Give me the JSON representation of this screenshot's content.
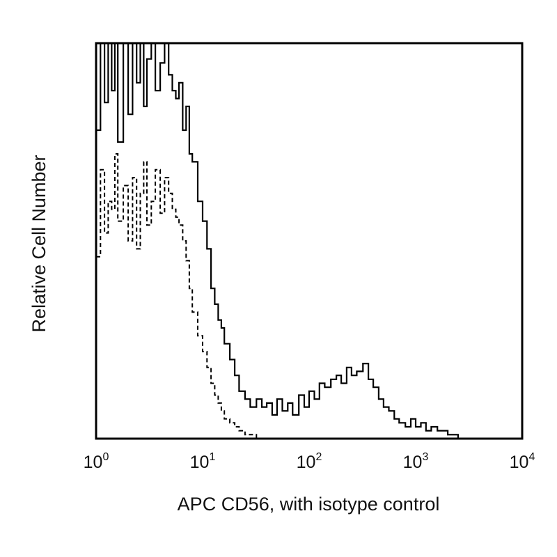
{
  "chart_data": {
    "type": "histogram",
    "title": "",
    "xlabel": "APC CD56, with isotype control",
    "ylabel": "Relative Cell Number",
    "x_scale": "log",
    "xlim": [
      1,
      10000
    ],
    "ylim": [
      0,
      100
    ],
    "grid": false,
    "legend": "none",
    "x_ticks": [
      {
        "value": 1,
        "base": "10",
        "exp": "0"
      },
      {
        "value": 10,
        "base": "10",
        "exp": "1"
      },
      {
        "value": 100,
        "base": "10",
        "exp": "2"
      },
      {
        "value": 1000,
        "base": "10",
        "exp": "3"
      },
      {
        "value": 10000,
        "base": "10",
        "exp": "4"
      }
    ],
    "series": [
      {
        "style": "solid",
        "color": "#000000",
        "x": [
          1.0,
          1.1,
          1.2,
          1.3,
          1.4,
          1.5,
          1.6,
          1.8,
          2.0,
          2.2,
          2.4,
          2.6,
          2.8,
          3.0,
          3.3,
          3.6,
          4.0,
          4.4,
          4.8,
          5.2,
          5.6,
          6.0,
          6.5,
          7.0,
          7.5,
          8.0,
          9.0,
          10.0,
          11.0,
          12.0,
          13.0,
          14.0,
          15.0,
          16.0,
          18.0,
          20.0,
          22.0,
          25.0,
          28.0,
          32.0,
          36.0,
          40.0,
          45.0,
          50.0,
          56.0,
          63.0,
          70.0,
          80.0,
          90.0,
          100.0,
          112.0,
          125.0,
          140.0,
          160.0,
          180.0,
          200.0,
          225.0,
          250.0,
          280.0,
          320.0,
          360.0,
          400.0,
          450.0,
          500.0,
          560.0,
          630.0,
          700.0,
          800.0,
          900.0,
          1000.0,
          1120.0,
          1250.0,
          1400.0,
          1600.0,
          1800.0,
          2000.0,
          2250.0,
          2500.0
        ],
        "y": [
          78,
          100,
          85,
          100,
          88,
          100,
          75,
          100,
          82,
          100,
          90,
          100,
          84,
          96,
          100,
          88,
          95,
          100,
          92,
          88,
          86,
          90,
          78,
          84,
          72,
          70,
          60,
          55,
          48,
          38,
          34,
          30,
          28,
          24,
          20,
          16,
          12,
          10,
          8,
          10,
          8,
          9,
          6,
          10,
          7,
          9,
          6,
          11,
          8,
          12,
          10,
          14,
          13,
          15,
          16,
          14,
          18,
          16,
          17,
          19,
          15,
          13,
          10,
          8,
          7,
          5,
          4,
          3,
          5,
          3,
          4,
          2,
          3,
          2,
          2,
          1,
          1,
          0
        ]
      },
      {
        "style": "dashed",
        "color": "#000000",
        "x": [
          1.0,
          1.1,
          1.2,
          1.3,
          1.4,
          1.5,
          1.6,
          1.8,
          2.0,
          2.2,
          2.4,
          2.6,
          2.8,
          3.0,
          3.3,
          3.6,
          4.0,
          4.4,
          4.8,
          5.2,
          5.6,
          6.0,
          6.5,
          7.0,
          7.5,
          8.0,
          9.0,
          10.0,
          11.0,
          12.0,
          13.0,
          14.0,
          15.0,
          16.0,
          18.0,
          20.0,
          22.0,
          25.0,
          28.0,
          32.0,
          36.0
        ],
        "y": [
          46,
          68,
          52,
          60,
          58,
          72,
          55,
          64,
          50,
          66,
          48,
          62,
          70,
          54,
          60,
          68,
          57,
          66,
          62,
          58,
          56,
          54,
          50,
          45,
          38,
          32,
          26,
          22,
          18,
          14,
          11,
          9,
          7,
          5,
          4,
          3,
          2,
          1,
          1,
          0,
          0
        ]
      }
    ]
  }
}
